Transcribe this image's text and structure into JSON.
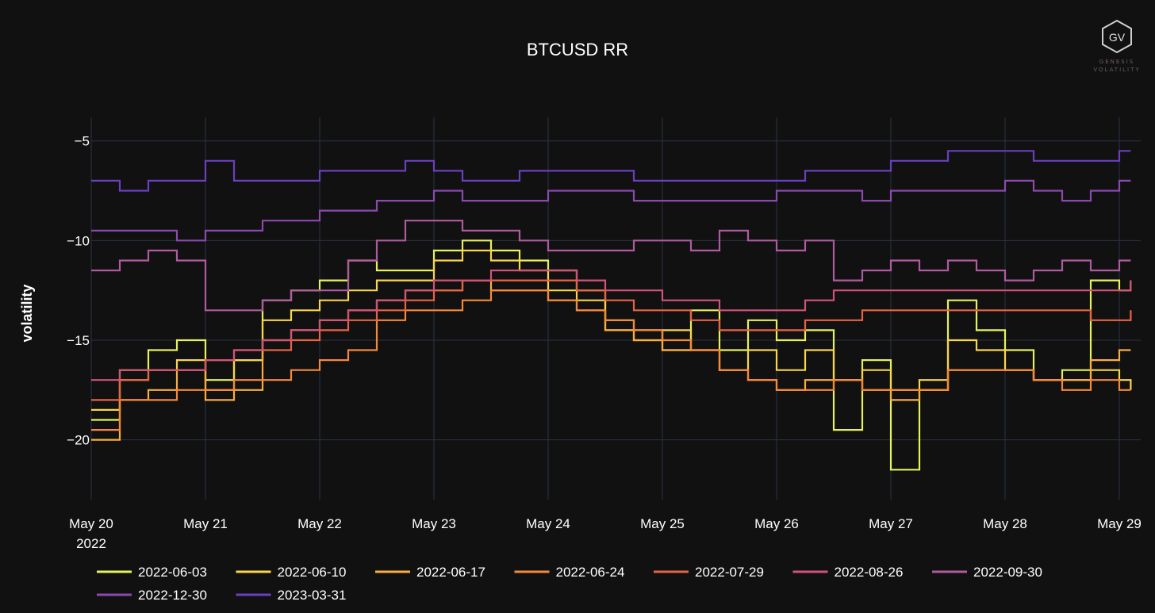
{
  "brand": {
    "logo_text": "GV",
    "logo_caption_1": "GENESIS",
    "logo_caption_2": "VOLATILITY",
    "logo_icon": "hexagon-logo-icon"
  },
  "colors": {
    "background": "#111111",
    "grid": "#2b3442"
  },
  "chart_data": {
    "type": "line",
    "line_shape": "step",
    "title": "BTCUSD RR",
    "xlabel": "",
    "ylabel": "volatility",
    "x_tick_labels": [
      "May 20",
      "May 21",
      "May 22",
      "May 23",
      "May 24",
      "May 25",
      "May 26",
      "May 27",
      "May 28",
      "May 29"
    ],
    "x_year_label": "2022",
    "x_range_days": [
      0,
      9.2
    ],
    "y_ticks": [
      -5,
      -10,
      -15,
      -20
    ],
    "ylim": [
      -23,
      -3.5
    ],
    "grid": true,
    "legend_position": "bottom",
    "series": [
      {
        "name": "2022-06-03",
        "color": "#e6f25c",
        "x": [
          0,
          0.25,
          0.5,
          0.75,
          1,
          1.25,
          1.5,
          1.75,
          2,
          2.25,
          2.5,
          2.75,
          3,
          3.25,
          3.5,
          3.75,
          4,
          4.25,
          4.5,
          4.75,
          5,
          5.25,
          5.5,
          5.75,
          6,
          6.25,
          6.5,
          6.75,
          7,
          7.25,
          7.5,
          7.75,
          8,
          8.25,
          8.5,
          8.75,
          9,
          9.1
        ],
        "y": [
          -19,
          -16.5,
          -15.5,
          -15,
          -17,
          -16,
          -13,
          -12.5,
          -12,
          -11,
          -11.5,
          -11.5,
          -10.5,
          -10,
          -10.5,
          -11,
          -11.5,
          -12.5,
          -14,
          -14.5,
          -15.5,
          -13.5,
          -15.5,
          -14,
          -15,
          -14.5,
          -19.5,
          -16,
          -21.5,
          -17.5,
          -13,
          -14.5,
          -15.5,
          -17,
          -16.5,
          -12,
          -12.5,
          -12
        ]
      },
      {
        "name": "2022-06-10",
        "color": "#f9d64a",
        "x": [
          0,
          0.25,
          0.5,
          0.75,
          1,
          1.25,
          1.5,
          1.75,
          2,
          2.25,
          2.5,
          2.75,
          3,
          3.25,
          3.5,
          3.75,
          4,
          4.25,
          4.5,
          4.75,
          5,
          5.25,
          5.5,
          5.75,
          6,
          6.25,
          6.5,
          6.75,
          7,
          7.25,
          7.5,
          7.75,
          8,
          8.25,
          8.5,
          8.75,
          9,
          9.1
        ],
        "y": [
          -18.5,
          -17,
          -16.5,
          -16,
          -17.5,
          -16,
          -14,
          -13.5,
          -13,
          -12.5,
          -12,
          -12,
          -11,
          -10.5,
          -11,
          -11.5,
          -12.5,
          -13,
          -14.5,
          -15,
          -14.5,
          -15.5,
          -16.5,
          -15.5,
          -16.5,
          -15.5,
          -17,
          -16.5,
          -17.5,
          -17,
          -15,
          -15.5,
          -16.5,
          -17,
          -17,
          -16.5,
          -17,
          -17.5
        ]
      },
      {
        "name": "2022-06-17",
        "color": "#fcae3d",
        "x": [
          0,
          0.25,
          0.5,
          0.75,
          1,
          1.25,
          1.5,
          1.75,
          2,
          2.25,
          2.5,
          2.75,
          3,
          3.25,
          3.5,
          3.75,
          4,
          4.25,
          4.5,
          4.75,
          5,
          5.25,
          5.5,
          5.75,
          6,
          6.25,
          6.5,
          6.75,
          7,
          7.25,
          7.5,
          7.75,
          8,
          8.25,
          8.5,
          8.75,
          9,
          9.1
        ],
        "y": [
          -20,
          -18,
          -17.5,
          -16.5,
          -18,
          -17.5,
          -15,
          -14.5,
          -14,
          -13.5,
          -13,
          -12.5,
          -12.5,
          -12,
          -12.5,
          -12.5,
          -13,
          -13.5,
          -14.5,
          -15,
          -15.5,
          -15.5,
          -16.5,
          -17,
          -17.5,
          -17,
          -17,
          -17.5,
          -18,
          -17.5,
          -16.5,
          -16.5,
          -16.5,
          -17,
          -17,
          -16,
          -15.5,
          -15.5
        ]
      },
      {
        "name": "2022-06-24",
        "color": "#f8893a",
        "x": [
          0,
          0.25,
          0.5,
          0.75,
          1,
          1.25,
          1.5,
          1.75,
          2,
          2.25,
          2.5,
          2.75,
          3,
          3.25,
          3.5,
          3.75,
          4,
          4.25,
          4.5,
          4.75,
          5,
          5.25,
          5.5,
          5.75,
          6,
          6.25,
          6.5,
          6.75,
          7,
          7.25,
          7.5,
          7.75,
          8,
          8.25,
          8.5,
          8.75,
          9,
          9.1
        ],
        "y": [
          -19.5,
          -18,
          -18,
          -17.5,
          -17.5,
          -17,
          -17,
          -16.5,
          -16,
          -15.5,
          -14,
          -13.5,
          -13.5,
          -13,
          -12.5,
          -12.5,
          -13,
          -13.5,
          -14,
          -14.5,
          -15,
          -15.5,
          -16.5,
          -17,
          -17.5,
          -17.5,
          -17,
          -17.5,
          -17.5,
          -17.5,
          -16.5,
          -16.5,
          -16.5,
          -17,
          -17.5,
          -17,
          -17.5,
          -17.5
        ]
      },
      {
        "name": "2022-07-29",
        "color": "#ea6346",
        "x": [
          0,
          0.25,
          0.5,
          0.75,
          1,
          1.25,
          1.5,
          1.75,
          2,
          2.25,
          2.5,
          2.75,
          3,
          3.25,
          3.5,
          3.75,
          4,
          4.25,
          4.5,
          4.75,
          5,
          5.25,
          5.5,
          5.75,
          6,
          6.25,
          6.5,
          6.75,
          7,
          7.25,
          7.5,
          7.75,
          8,
          8.25,
          8.5,
          8.75,
          9,
          9.1
        ],
        "y": [
          -18,
          -17,
          -16.5,
          -16.5,
          -16,
          -15.5,
          -15.5,
          -15,
          -14.5,
          -14,
          -13.5,
          -13,
          -12.5,
          -12,
          -12,
          -12,
          -12,
          -12.5,
          -13,
          -13.5,
          -13.5,
          -14,
          -14.5,
          -14.5,
          -14.5,
          -14,
          -14,
          -13.5,
          -13.5,
          -13.5,
          -13.5,
          -13.5,
          -13.5,
          -13.5,
          -13.5,
          -14,
          -14,
          -13.5
        ]
      },
      {
        "name": "2022-08-26",
        "color": "#d2537a",
        "x": [
          0,
          0.25,
          0.5,
          0.75,
          1,
          1.25,
          1.5,
          1.75,
          2,
          2.25,
          2.5,
          2.75,
          3,
          3.25,
          3.5,
          3.75,
          4,
          4.25,
          4.5,
          4.75,
          5,
          5.25,
          5.5,
          5.75,
          6,
          6.25,
          6.5,
          6.75,
          7,
          7.25,
          7.5,
          7.75,
          8,
          8.25,
          8.5,
          8.75,
          9,
          9.1
        ],
        "y": [
          -17,
          -16.5,
          -16.5,
          -16.5,
          -16,
          -15.5,
          -15,
          -14.5,
          -14,
          -13.5,
          -13,
          -12.5,
          -12,
          -12,
          -11.5,
          -11.5,
          -11.5,
          -12,
          -12.5,
          -12.5,
          -13,
          -13,
          -13.5,
          -13.5,
          -13.5,
          -13,
          -12.5,
          -12.5,
          -12.5,
          -12.5,
          -12.5,
          -12.5,
          -12.5,
          -12.5,
          -12.5,
          -12.5,
          -12.5,
          -12
        ]
      },
      {
        "name": "2022-09-30",
        "color": "#b05aa0",
        "x": [
          0,
          0.25,
          0.5,
          0.75,
          1,
          1.25,
          1.5,
          1.75,
          2,
          2.25,
          2.5,
          2.75,
          3,
          3.25,
          3.5,
          3.75,
          4,
          4.25,
          4.5,
          4.75,
          5,
          5.25,
          5.5,
          5.75,
          6,
          6.25,
          6.5,
          6.75,
          7,
          7.25,
          7.5,
          7.75,
          8,
          8.25,
          8.5,
          8.75,
          9,
          9.1
        ],
        "y": [
          -11.5,
          -11,
          -10.5,
          -11,
          -13.5,
          -13.5,
          -13,
          -12.5,
          -12.5,
          -11,
          -10,
          -9,
          -9,
          -9.5,
          -9.5,
          -10,
          -10.5,
          -10.5,
          -10.5,
          -10,
          -10,
          -10.5,
          -9.5,
          -10,
          -10.5,
          -10,
          -12,
          -11.5,
          -11,
          -11.5,
          -11,
          -11.5,
          -12,
          -11.5,
          -11,
          -11.5,
          -11,
          -11
        ]
      },
      {
        "name": "2022-12-30",
        "color": "#8a4ab0",
        "x": [
          0,
          0.25,
          0.5,
          0.75,
          1,
          1.25,
          1.5,
          1.75,
          2,
          2.25,
          2.5,
          2.75,
          3,
          3.25,
          3.5,
          3.75,
          4,
          4.25,
          4.5,
          4.75,
          5,
          5.25,
          5.5,
          5.75,
          6,
          6.25,
          6.5,
          6.75,
          7,
          7.25,
          7.5,
          7.75,
          8,
          8.25,
          8.5,
          8.75,
          9,
          9.1
        ],
        "y": [
          -9.5,
          -9.5,
          -9.5,
          -10,
          -9.5,
          -9.5,
          -9,
          -9,
          -8.5,
          -8.5,
          -8,
          -8,
          -7.5,
          -8,
          -8,
          -8,
          -7.5,
          -7.5,
          -7.5,
          -8,
          -8,
          -8,
          -8,
          -8,
          -7.5,
          -7.5,
          -7.5,
          -8,
          -7.5,
          -7.5,
          -7.5,
          -7.5,
          -7,
          -7.5,
          -8,
          -7.5,
          -7,
          -7
        ]
      },
      {
        "name": "2023-03-31",
        "color": "#6a3fc0",
        "x": [
          0,
          0.25,
          0.5,
          0.75,
          1,
          1.25,
          1.5,
          1.75,
          2,
          2.25,
          2.5,
          2.75,
          3,
          3.25,
          3.5,
          3.75,
          4,
          4.25,
          4.5,
          4.75,
          5,
          5.25,
          5.5,
          5.75,
          6,
          6.25,
          6.5,
          6.75,
          7,
          7.25,
          7.5,
          7.75,
          8,
          8.25,
          8.5,
          8.75,
          9,
          9.1
        ],
        "y": [
          -7,
          -7.5,
          -7,
          -7,
          -6,
          -7,
          -7,
          -7,
          -6.5,
          -6.5,
          -6.5,
          -6,
          -6.5,
          -7,
          -7,
          -6.5,
          -6.5,
          -6.5,
          -6.5,
          -7,
          -7,
          -7,
          -7,
          -7,
          -7,
          -6.5,
          -6.5,
          -6.5,
          -6,
          -6,
          -5.5,
          -5.5,
          -5.5,
          -6,
          -6,
          -6,
          -5.5,
          -5.5
        ]
      }
    ]
  }
}
